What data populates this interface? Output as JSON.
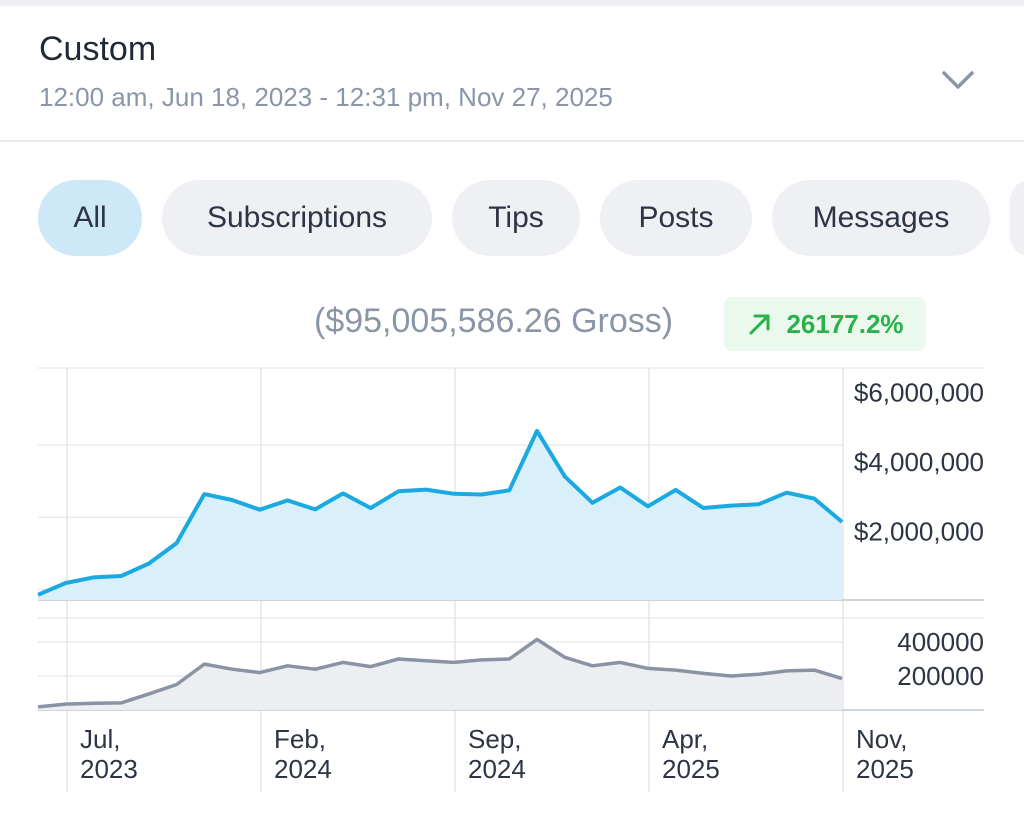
{
  "header": {
    "title": "Custom",
    "date_range": "12:00 am, Jun 18, 2023 - 12:31 pm, Nov 27, 2025",
    "dropdown_icon": "chevron-down-icon"
  },
  "tabs": [
    {
      "label": "All",
      "active": true
    },
    {
      "label": "Subscriptions",
      "active": false
    },
    {
      "label": "Tips",
      "active": false
    },
    {
      "label": "Posts",
      "active": false
    },
    {
      "label": "Messages",
      "active": false
    }
  ],
  "summary": {
    "gross": "($95,005,586.26 Gross)",
    "change": "26177.2%",
    "change_icon": "arrow-up-right-icon",
    "change_color": "#2bb24c"
  },
  "colors": {
    "earnings_line": "#1aa9e0",
    "earnings_fill": "#d9f0fb",
    "count_line": "#8a93a3",
    "count_fill": "#eceef1",
    "grid": "#e3e7ec",
    "accent_tab": "#cde9f8"
  },
  "chart_data": [
    {
      "type": "area",
      "x_ticks": [
        "Jul, 2023",
        "Feb, 2024",
        "Sep, 2024",
        "Apr, 2025",
        "Nov, 2025"
      ],
      "ylim": [
        0,
        6000000
      ],
      "y_ticks": [
        {
          "value": 2000000,
          "label": "$2,000,000"
        },
        {
          "value": 4000000,
          "label": "$4,000,000"
        },
        {
          "value": 6000000,
          "label": "$6,000,000"
        }
      ],
      "series": [
        {
          "x": [
            "2023-06",
            "2023-07",
            "2023-08",
            "2023-09",
            "2023-10",
            "2023-11",
            "2023-12",
            "2024-01",
            "2024-02",
            "2024-03",
            "2024-04",
            "2024-05",
            "2024-06",
            "2024-07",
            "2024-08",
            "2024-09",
            "2024-10",
            "2024-11",
            "2024-12",
            "2025-01",
            "2025-02",
            "2025-03",
            "2025-04",
            "2025-05",
            "2025-06",
            "2025-07",
            "2025-08",
            "2025-09",
            "2025-10",
            "2025-11"
          ],
          "values": [
            150000,
            490000,
            650000,
            690000,
            1050000,
            1640000,
            3050000,
            2880000,
            2600000,
            2870000,
            2610000,
            3070000,
            2650000,
            3130000,
            3180000,
            3060000,
            3040000,
            3160000,
            4870000,
            3560000,
            2800000,
            3240000,
            2700000,
            3170000,
            2650000,
            2720000,
            2760000,
            3090000,
            2920000,
            2250000
          ]
        }
      ]
    },
    {
      "type": "area",
      "x_ticks": [
        "Jul, 2023",
        "Feb, 2024",
        "Sep, 2024",
        "Apr, 2025",
        "Nov, 2025"
      ],
      "ylim": [
        0,
        400000
      ],
      "y_ticks": [
        {
          "value": 200000,
          "label": "200000"
        },
        {
          "value": 400000,
          "label": "400000"
        }
      ],
      "series": [
        {
          "x": [
            "2023-06",
            "2023-07",
            "2023-08",
            "2023-09",
            "2023-10",
            "2023-11",
            "2023-12",
            "2024-01",
            "2024-02",
            "2024-03",
            "2024-04",
            "2024-05",
            "2024-06",
            "2024-07",
            "2024-08",
            "2024-09",
            "2024-10",
            "2024-11",
            "2024-12",
            "2025-01",
            "2025-02",
            "2025-03",
            "2025-04",
            "2025-05",
            "2025-06",
            "2025-07",
            "2025-08",
            "2025-09",
            "2025-10",
            "2025-11"
          ],
          "values": [
            18000,
            35000,
            40000,
            42000,
            95000,
            150000,
            270000,
            240000,
            220000,
            260000,
            240000,
            280000,
            255000,
            300000,
            290000,
            280000,
            295000,
            300000,
            415000,
            310000,
            260000,
            280000,
            245000,
            235000,
            215000,
            200000,
            210000,
            230000,
            235000,
            185000
          ]
        }
      ]
    }
  ]
}
